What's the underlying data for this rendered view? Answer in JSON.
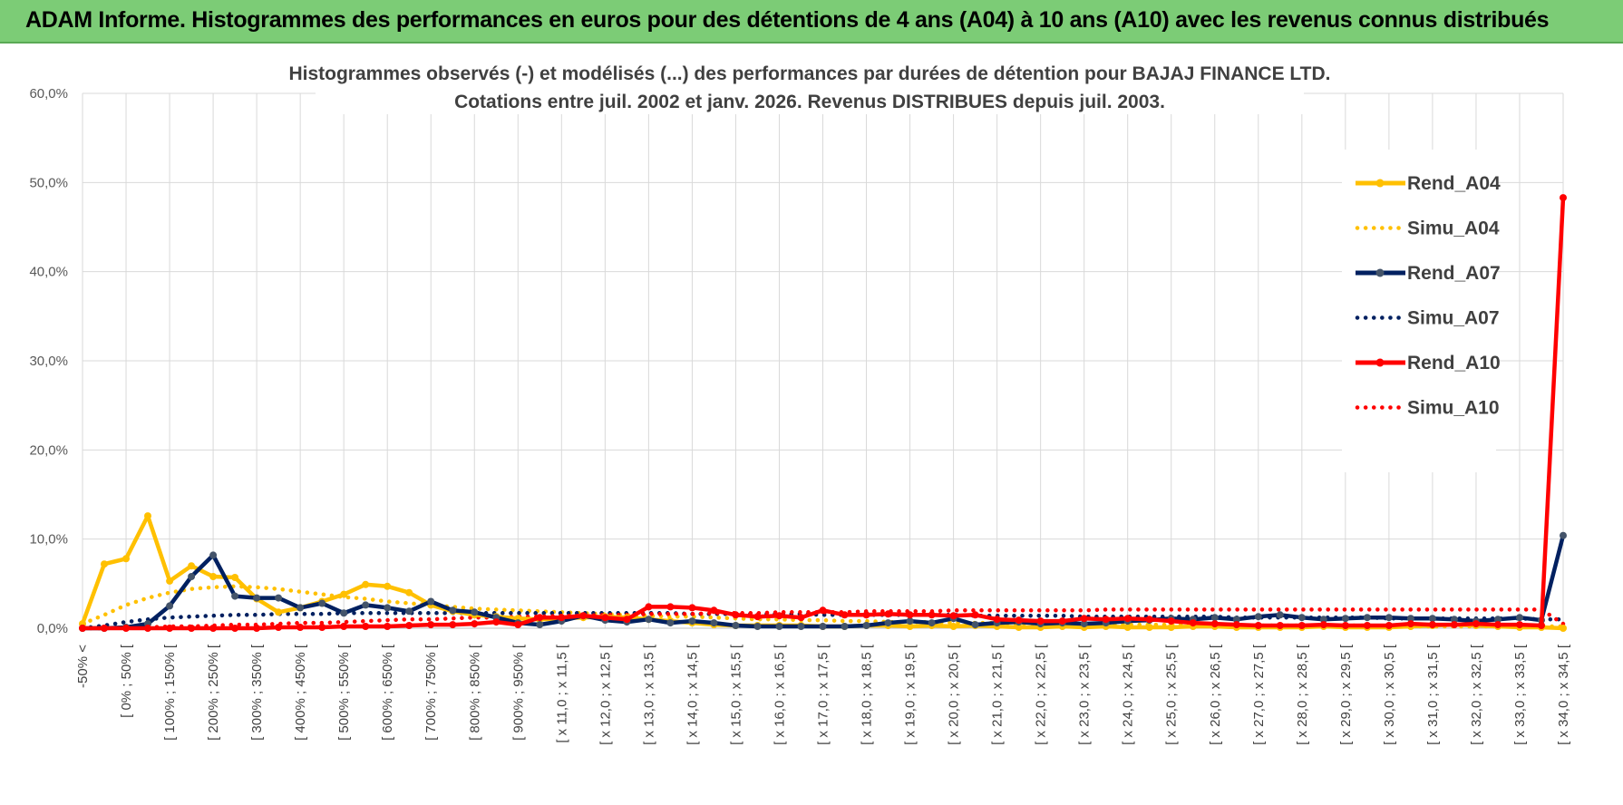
{
  "banner": {
    "title": "ADAM Informe. Histogrammes des performances en euros pour des détentions de 4 ans (A04) à 10 ans (A10) avec les revenus connus distribués"
  },
  "colors": {
    "banner_bg": "#7ccc76",
    "A04": "#ffc000",
    "A07": "#002060",
    "A10": "#ff0000",
    "marker_A07": "#44546a",
    "grid": "#d9d9d9"
  },
  "chart_data": {
    "type": "line",
    "title": [
      "Histogrammes observés (-) et modélisés (...) des performances par durées de détention pour BAJAJ FINANCE LTD.",
      "Cotations entre juil. 2002 et janv. 2026. Revenus DISTRIBUES depuis juil. 2003."
    ],
    "xlabel": "",
    "ylabel": "",
    "ylim": [
      0,
      60
    ],
    "yticks": [
      "0,0%",
      "10,0%",
      "20,0%",
      "30,0%",
      "40,0%",
      "50,0%",
      "60,0%"
    ],
    "grid": true,
    "legend_position": "top-right",
    "x_category_count": 69,
    "x_tick_labels": [
      "-50% <",
      "[ 0% ; 50% [",
      "[ 100% ; 150% [",
      "[ 200% ; 250% [",
      "[ 300% ; 350% [",
      "[ 400% ; 450% [",
      "[ 500% ; 550% [",
      "[ 600% ; 650% [",
      "[ 700% ; 750% [",
      "[ 800% ; 850% [",
      "[ 900% ; 950% [",
      "[ x 11,0 ; x 11,5 [",
      "[ x 12,0 ; x 12,5 [",
      "[ x 13,0 ; x 13,5 [",
      "[ x 14,0 ; x 14,5 [",
      "[ x 15,0 ; x 15,5 [",
      "[ x 16,0 ; x 16,5 [",
      "[ x 17,0 ; x 17,5 [",
      "[ x 18,0 ; x 18,5 [",
      "[ x 19,0 ; x 19,5 [",
      "[ x 20,0 ; x 20,5 [",
      "[ x 21,0 ; x 21,5 [",
      "[ x 22,0 ; x 22,5 [",
      "[ x 23,0 ; x 23,5 [",
      "[ x 24,0 ; x 24,5 [",
      "[ x 25,0 ; x 25,5 [",
      "[ x 26,0 ; x 26,5 [",
      "[ x 27,0 ; x 27,5 [",
      "[ x 28,0 ; x 28,5 [",
      "[ x 29,0 ; x 29,5 [",
      "[ x 30,0 ; x 30,5 [",
      "[ x 31,0 ; x 31,5 [",
      "[ x 32,0 ; x 32,5 [",
      "[ x 33,0 ; x 33,5 [",
      "[ x 34,0 ; x 34,5 ["
    ],
    "series": [
      {
        "name": "Rend_A04",
        "style": "solid",
        "color_key": "A04",
        "values": [
          0.5,
          7.2,
          7.8,
          12.6,
          5.3,
          7.0,
          5.8,
          5.7,
          3.3,
          1.8,
          2.3,
          3.0,
          3.8,
          4.9,
          4.7,
          4.0,
          2.6,
          1.9,
          1.5,
          1.3,
          1.1,
          1.0,
          1.1,
          1.2,
          1.3,
          1.2,
          1.0,
          0.8,
          0.6,
          0.4,
          0.3,
          0.3,
          0.3,
          0.3,
          0.2,
          0.2,
          0.3,
          0.3,
          0.2,
          0.3,
          0.2,
          0.3,
          0.2,
          0.1,
          0.1,
          0.2,
          0.1,
          0.2,
          0.1,
          0.1,
          0.1,
          0.2,
          0.2,
          0.1,
          0.1,
          0.1,
          0.1,
          0.2,
          0.1,
          0.1,
          0.1,
          0.2,
          0.3,
          0.4,
          0.3,
          0.2,
          0.1,
          0.1,
          0.0
        ]
      },
      {
        "name": "Simu_A04",
        "style": "dotted",
        "color_key": "A04",
        "values": [
          0.5,
          1.5,
          2.6,
          3.4,
          4.0,
          4.4,
          4.6,
          4.7,
          4.6,
          4.4,
          4.1,
          3.8,
          3.5,
          3.3,
          3.0,
          2.8,
          2.6,
          2.4,
          2.2,
          2.1,
          2.0,
          1.9,
          1.8,
          1.7,
          1.6,
          1.5,
          1.4,
          1.3,
          1.3,
          1.2,
          1.1,
          1.0,
          1.0,
          0.9,
          0.9,
          0.8,
          0.8,
          0.7,
          0.7,
          0.7,
          0.6,
          0.6,
          0.6,
          0.5,
          0.5,
          0.5,
          0.5,
          0.4,
          0.4,
          0.4,
          0.4,
          0.4,
          0.3,
          0.3,
          0.3,
          0.3,
          0.3,
          0.3,
          0.3,
          0.3,
          0.2,
          0.2,
          0.2,
          0.2,
          0.2,
          0.2,
          0.2,
          0.2,
          0.2
        ]
      },
      {
        "name": "Rend_A07",
        "style": "solid",
        "color_key": "A07",
        "values": [
          0.0,
          0.0,
          0.1,
          0.5,
          2.5,
          5.8,
          8.2,
          3.6,
          3.4,
          3.4,
          2.3,
          2.8,
          1.7,
          2.6,
          2.3,
          1.9,
          3.0,
          2.0,
          1.8,
          1.2,
          0.6,
          0.4,
          0.8,
          1.4,
          0.9,
          0.7,
          1.0,
          0.6,
          0.8,
          0.6,
          0.3,
          0.2,
          0.2,
          0.2,
          0.2,
          0.2,
          0.3,
          0.6,
          0.8,
          0.6,
          1.1,
          0.4,
          0.6,
          0.7,
          0.5,
          0.6,
          0.5,
          0.6,
          0.8,
          0.9,
          1.1,
          1.0,
          1.2,
          1.0,
          1.3,
          1.5,
          1.2,
          1.0,
          1.1,
          1.2,
          1.2,
          1.1,
          1.1,
          1.0,
          0.8,
          1.0,
          1.2,
          0.9,
          10.4
        ]
      },
      {
        "name": "Simu_A07",
        "style": "dotted",
        "color_key": "A07",
        "values": [
          0.0,
          0.3,
          0.7,
          1.0,
          1.2,
          1.3,
          1.4,
          1.5,
          1.5,
          1.6,
          1.6,
          1.6,
          1.7,
          1.7,
          1.7,
          1.7,
          1.7,
          1.7,
          1.7,
          1.7,
          1.7,
          1.7,
          1.7,
          1.7,
          1.7,
          1.7,
          1.7,
          1.7,
          1.6,
          1.6,
          1.6,
          1.6,
          1.6,
          1.6,
          1.5,
          1.5,
          1.5,
          1.5,
          1.5,
          1.5,
          1.5,
          1.4,
          1.4,
          1.4,
          1.4,
          1.4,
          1.3,
          1.3,
          1.3,
          1.3,
          1.3,
          1.3,
          1.3,
          1.2,
          1.2,
          1.2,
          1.2,
          1.2,
          1.2,
          1.2,
          1.1,
          1.1,
          1.1,
          1.1,
          1.1,
          1.1,
          1.1,
          1.0,
          1.0
        ]
      },
      {
        "name": "Rend_A10",
        "style": "solid",
        "color_key": "A10",
        "values": [
          0.0,
          0.0,
          0.0,
          0.0,
          0.0,
          0.0,
          0.0,
          0.0,
          0.0,
          0.1,
          0.1,
          0.1,
          0.2,
          0.2,
          0.2,
          0.3,
          0.4,
          0.4,
          0.5,
          0.7,
          0.4,
          1.2,
          1.2,
          1.4,
          1.2,
          1.0,
          2.4,
          2.4,
          2.3,
          2.0,
          1.5,
          1.3,
          1.4,
          1.2,
          2.0,
          1.5,
          1.5,
          1.6,
          1.5,
          1.5,
          1.4,
          1.5,
          1.0,
          0.9,
          0.8,
          0.8,
          1.1,
          1.0,
          1.1,
          1.0,
          0.8,
          0.6,
          0.5,
          0.4,
          0.3,
          0.3,
          0.3,
          0.4,
          0.3,
          0.3,
          0.3,
          0.5,
          0.4,
          0.4,
          0.5,
          0.4,
          0.4,
          0.3,
          48.3
        ]
      },
      {
        "name": "Simu_A10",
        "style": "dotted",
        "color_key": "A10",
        "values": [
          0.0,
          0.0,
          0.1,
          0.1,
          0.2,
          0.2,
          0.3,
          0.4,
          0.4,
          0.5,
          0.6,
          0.6,
          0.7,
          0.8,
          0.9,
          1.0,
          1.0,
          1.1,
          1.2,
          1.2,
          1.3,
          1.3,
          1.4,
          1.4,
          1.5,
          1.5,
          1.6,
          1.6,
          1.6,
          1.7,
          1.7,
          1.7,
          1.8,
          1.8,
          1.8,
          1.8,
          1.9,
          1.9,
          1.9,
          1.9,
          2.0,
          2.0,
          2.0,
          2.0,
          2.0,
          2.0,
          2.0,
          2.1,
          2.1,
          2.1,
          2.1,
          2.1,
          2.1,
          2.1,
          2.1,
          2.1,
          2.1,
          2.1,
          2.1,
          2.1,
          2.1,
          2.1,
          2.1,
          2.1,
          2.1,
          2.1,
          2.1,
          2.1,
          0.5
        ]
      }
    ]
  }
}
